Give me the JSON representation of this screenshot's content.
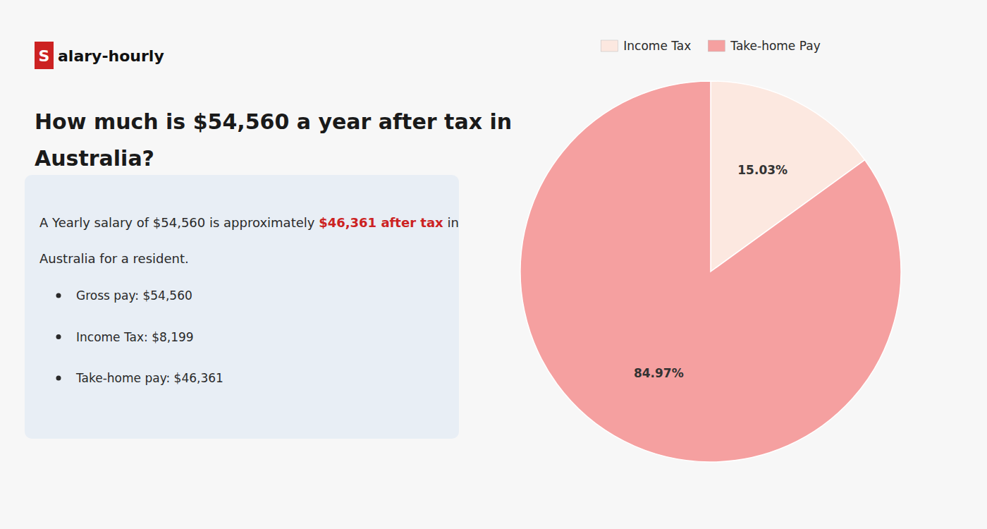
{
  "chart_data": {
    "type": "pie",
    "title": [
      "How much is $54,560 a year after tax in",
      "Australia?"
    ],
    "logo": {
      "text": [
        "S",
        "alary-hourly"
      ],
      "color": "#cc2222"
    },
    "intro": {
      "lines": [
        [
          "A Yearly salary of $54,560 is approximately ",
          "$46,361 after tax",
          " in"
        ],
        [
          "Australia for a resident."
        ]
      ],
      "color": "#cc2222"
    },
    "bullets": [
      "Gross pay: $54,560",
      "Income Tax: $8,199",
      "Take-home pay: $46,361"
    ],
    "categories": [
      "Income Tax",
      "Take-home Pay"
    ],
    "values": [
      15.03,
      84.97
    ],
    "value_labels": [
      "15.03%",
      "84.97%"
    ],
    "colors": [
      "#fce8e0",
      "#f5a0a0"
    ],
    "data_labels": true,
    "legend": "top"
  }
}
